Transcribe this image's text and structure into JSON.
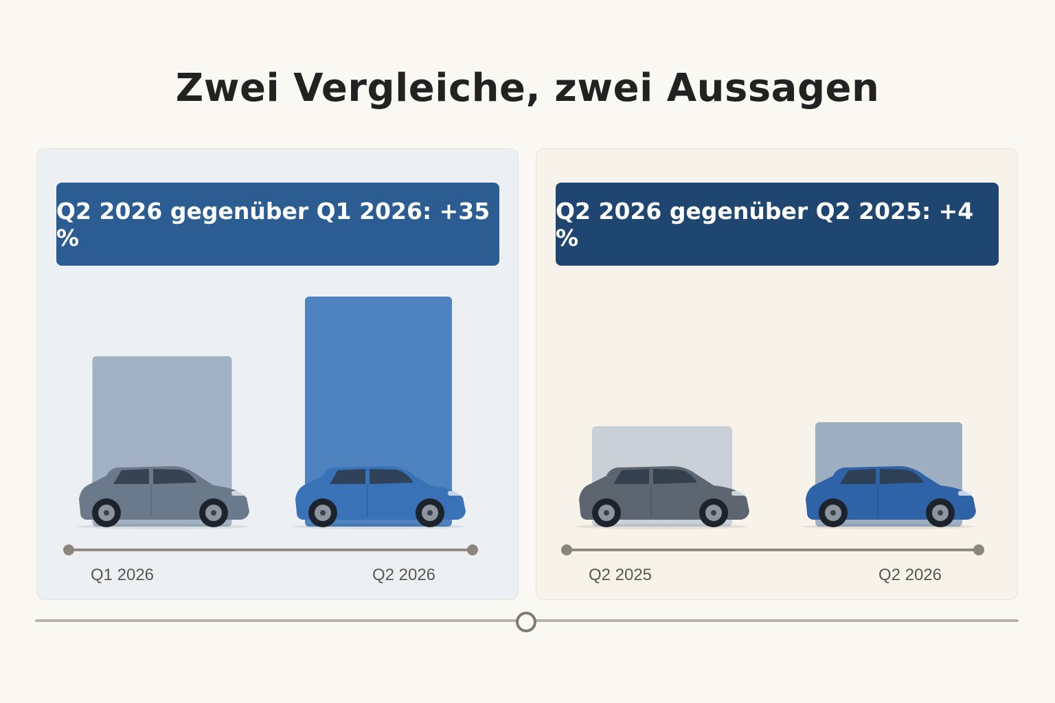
{
  "title": "Zwei Vergleiche, zwei Aussagen",
  "colors": {
    "page_bg": "#faf8f2",
    "left_panel_bg": "#ecf0f3",
    "right_panel_bg": "#f7f2ea",
    "banner_left": "#2b5c92",
    "banner_right": "#1e4670",
    "bar_gray": "#9aabbf",
    "bar_blue": "#3d77b9",
    "bar_light_gray": "#c3ccd5",
    "bar_slate": "#92a7bc",
    "car_gray": "#6b7a8a",
    "car_blue": "#3a72b8",
    "car_dark": "#5d6670",
    "car_blue_dark": "#2f63a8",
    "axis": "#8f8a82"
  },
  "chart_data": [
    {
      "type": "bar",
      "title": "Q2 2026 gegenüber Q1 2026: +35 %",
      "categories": [
        "Q1 2026",
        "Q2 2026"
      ],
      "values": [
        100,
        135
      ],
      "icons": [
        "car-gray",
        "car-blue"
      ]
    },
    {
      "type": "bar",
      "title": "Q2 2026 gegenüber Q2 2025: +4 %",
      "categories": [
        "Q2 2025",
        "Q2 2026"
      ],
      "values": [
        100,
        104
      ],
      "icons": [
        "car-dark",
        "car-blue-dark"
      ]
    }
  ]
}
